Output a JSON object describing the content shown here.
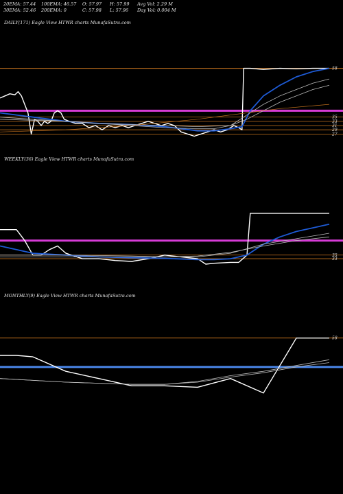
{
  "header": {
    "ema20": "20EMA: 57.44",
    "ema100": "100EMA: 46.57",
    "open": "O: 57.97",
    "high": "H: 57.99",
    "avg_vol": "Avg Vol: 2.29 M",
    "ema30": "30EMA: 52.46",
    "ema200": "200EMA: 0",
    "close": "C: 57.98",
    "low": "L: 57.96",
    "day_vol": "Day Vol: 0.004 M"
  },
  "colors": {
    "background": "#000000",
    "price": "#ffffff",
    "ema_fast": "#1e5bd6",
    "ema_slow": "#bbbbbb",
    "magenta_level": "#d63bd6",
    "orange_level": "#c8741e",
    "blue_level": "#4a86e8"
  },
  "chart_data": [
    {
      "type": "line",
      "title": "DAILY(171) Eagle   View  HTWR charts MunafaSutra.com",
      "ylim": [
        25.5,
        59.5
      ],
      "xlim": [
        0,
        100
      ],
      "ticks": [
        {
          "value": 58,
          "label": "58"
        },
        {
          "value": 35,
          "label": "35"
        },
        {
          "value": 33,
          "label": "33"
        },
        {
          "value": 31,
          "label": "31"
        },
        {
          "value": 29,
          "label": "29"
        },
        {
          "value": 27,
          "label": "27"
        }
      ],
      "hlines": [
        {
          "y": 58,
          "color": "orange",
          "width": 1
        },
        {
          "y": 38,
          "color": "magenta",
          "width": 3
        },
        {
          "y": 35,
          "color": "orange",
          "width": 0.8
        },
        {
          "y": 33,
          "color": "orange",
          "width": 0.8
        },
        {
          "y": 31,
          "color": "orange",
          "width": 0.8
        },
        {
          "y": 29,
          "color": "orange",
          "width": 0.8
        },
        {
          "y": 27,
          "color": "orange",
          "width": 0.8
        }
      ],
      "series": [
        {
          "role": "price",
          "points": [
            [
              0,
              44
            ],
            [
              1.5,
              45
            ],
            [
              3,
              46
            ],
            [
              4.5,
              45.5
            ],
            [
              5.5,
              47
            ],
            [
              6.5,
              45
            ],
            [
              7.5,
              41
            ],
            [
              8.5,
              37
            ],
            [
              9.5,
              27
            ],
            [
              10.5,
              34
            ],
            [
              11.5,
              33
            ],
            [
              12.5,
              31
            ],
            [
              13.5,
              33
            ],
            [
              14.5,
              32
            ],
            [
              15.5,
              33
            ],
            [
              16.5,
              37
            ],
            [
              17.5,
              38
            ],
            [
              18.5,
              37
            ],
            [
              19.5,
              34
            ],
            [
              21,
              33
            ],
            [
              23,
              32
            ],
            [
              25,
              32
            ],
            [
              27,
              30
            ],
            [
              29,
              31
            ],
            [
              31,
              29
            ],
            [
              33,
              31
            ],
            [
              35,
              30
            ],
            [
              37,
              31
            ],
            [
              39,
              30
            ],
            [
              41,
              31
            ],
            [
              43,
              32
            ],
            [
              45,
              33
            ],
            [
              47,
              32
            ],
            [
              49,
              31
            ],
            [
              51,
              32
            ],
            [
              53,
              31
            ],
            [
              55,
              28
            ],
            [
              57,
              27
            ],
            [
              59,
              26
            ],
            [
              61,
              27
            ],
            [
              63,
              28
            ],
            [
              65,
              29
            ],
            [
              67,
              28
            ],
            [
              69,
              29
            ],
            [
              71,
              31
            ],
            [
              72.5,
              30
            ],
            [
              73.5,
              29
            ],
            [
              74,
              58
            ],
            [
              76,
              58
            ],
            [
              80,
              57.5
            ],
            [
              85,
              58
            ],
            [
              90,
              57.8
            ],
            [
              95,
              58
            ],
            [
              100,
              58
            ]
          ]
        },
        {
          "role": "ema_fast",
          "points": [
            [
              0,
              37
            ],
            [
              5,
              36
            ],
            [
              10,
              35
            ],
            [
              20,
              33
            ],
            [
              30,
              32
            ],
            [
              40,
              31.5
            ],
            [
              50,
              30.5
            ],
            [
              55,
              29.5
            ],
            [
              60,
              28.5
            ],
            [
              65,
              28.5
            ],
            [
              70,
              29.5
            ],
            [
              73.5,
              30.5
            ],
            [
              76,
              38
            ],
            [
              80,
              45
            ],
            [
              85,
              50
            ],
            [
              90,
              54
            ],
            [
              95,
              56.5
            ],
            [
              100,
              58
            ]
          ]
        },
        {
          "role": "ema_slow",
          "points": [
            [
              0,
              35
            ],
            [
              10,
              34
            ],
            [
              20,
              33
            ],
            [
              30,
              32
            ],
            [
              40,
              31
            ],
            [
              50,
              30
            ],
            [
              60,
              29.5
            ],
            [
              65,
              29.5
            ],
            [
              70,
              31
            ],
            [
              75,
              36
            ],
            [
              80,
              41
            ],
            [
              85,
              45
            ],
            [
              90,
              48
            ],
            [
              95,
              51
            ],
            [
              100,
              53
            ]
          ]
        },
        {
          "role": "ema_slow",
          "points": [
            [
              0,
              34
            ],
            [
              10,
              33.5
            ],
            [
              20,
              33
            ],
            [
              30,
              32
            ],
            [
              40,
              31.5
            ],
            [
              50,
              31
            ],
            [
              60,
              30.5
            ],
            [
              70,
              31
            ],
            [
              75,
              34
            ],
            [
              80,
              38
            ],
            [
              85,
              42
            ],
            [
              90,
              45
            ],
            [
              95,
              48
            ],
            [
              100,
              50
            ]
          ]
        },
        {
          "role": "ema_orange",
          "points": [
            [
              0,
              28
            ],
            [
              20,
              29
            ],
            [
              40,
              31
            ],
            [
              60,
              34
            ],
            [
              75,
              37
            ],
            [
              85,
              39
            ],
            [
              100,
              41
            ]
          ]
        }
      ]
    },
    {
      "type": "line",
      "title": "WEEKLY(36) Eagle   View  HTWR charts MunafaSutra.com",
      "ylim": [
        30,
        64
      ],
      "xlim": [
        0,
        100
      ],
      "ticks": [
        {
          "value": 35,
          "label": "35"
        },
        {
          "value": 33,
          "label": "33"
        }
      ],
      "hlines": [
        {
          "y": 43,
          "color": "magenta",
          "width": 3
        },
        {
          "y": 35,
          "color": "orange",
          "width": 0.8
        },
        {
          "y": 33,
          "color": "orange",
          "width": 0.8
        }
      ],
      "series": [
        {
          "role": "price",
          "points": [
            [
              0,
              49
            ],
            [
              5,
              49
            ],
            [
              7.5,
              43
            ],
            [
              10,
              35
            ],
            [
              12.5,
              35
            ],
            [
              15,
              38
            ],
            [
              17.5,
              40
            ],
            [
              20,
              36
            ],
            [
              25,
              33
            ],
            [
              30,
              33
            ],
            [
              35,
              32
            ],
            [
              40,
              31.5
            ],
            [
              45,
              33
            ],
            [
              50,
              35
            ],
            [
              55,
              34
            ],
            [
              60,
              33
            ],
            [
              62.5,
              30
            ],
            [
              65,
              30.5
            ],
            [
              70,
              31
            ],
            [
              72.5,
              31
            ],
            [
              75,
              35
            ],
            [
              76,
              58
            ],
            [
              80,
              58
            ],
            [
              85,
              58
            ],
            [
              90,
              58
            ],
            [
              95,
              58
            ],
            [
              100,
              58
            ]
          ]
        },
        {
          "role": "ema_fast",
          "points": [
            [
              0,
              40
            ],
            [
              10,
              36
            ],
            [
              20,
              35
            ],
            [
              30,
              34
            ],
            [
              40,
              33.5
            ],
            [
              50,
              33.2
            ],
            [
              60,
              32.5
            ],
            [
              65,
              32.5
            ],
            [
              70,
              33
            ],
            [
              75,
              35
            ],
            [
              80,
              41
            ],
            [
              85,
              45
            ],
            [
              90,
              48
            ],
            [
              95,
              50
            ],
            [
              100,
              52
            ]
          ]
        },
        {
          "role": "ema_slow",
          "points": [
            [
              0,
              35
            ],
            [
              20,
              35
            ],
            [
              40,
              34.5
            ],
            [
              50,
              34
            ],
            [
              60,
              34
            ],
            [
              70,
              36
            ],
            [
              80,
              41
            ],
            [
              90,
              44
            ],
            [
              100,
              47
            ]
          ]
        },
        {
          "role": "ema_slow",
          "points": [
            [
              0,
              34
            ],
            [
              20,
              34
            ],
            [
              40,
              34
            ],
            [
              50,
              34
            ],
            [
              60,
              34.5
            ],
            [
              70,
              36.5
            ],
            [
              80,
              40
            ],
            [
              90,
              43
            ],
            [
              100,
              45
            ]
          ]
        }
      ]
    },
    {
      "type": "line",
      "title": "MONTHLY(9) Eagle   View  HTWR charts MunafaSutra.com",
      "ylim": [
        0,
        64
      ],
      "xlim": [
        0,
        100
      ],
      "ticks": [
        {
          "value": 58,
          "label": "58"
        }
      ],
      "hlines": [
        {
          "y": 58,
          "color": "orange",
          "width": 1
        },
        {
          "y": 38,
          "color": "blue",
          "width": 3
        }
      ],
      "series": [
        {
          "role": "price",
          "points": [
            [
              0,
              46
            ],
            [
              5,
              46
            ],
            [
              10,
              45
            ],
            [
              20,
              35
            ],
            [
              30,
              30
            ],
            [
              40,
              25
            ],
            [
              50,
              25
            ],
            [
              60,
              24
            ],
            [
              70,
              30
            ],
            [
              80,
              20
            ],
            [
              90,
              58
            ],
            [
              100,
              58
            ]
          ]
        },
        {
          "role": "ema_slow",
          "points": [
            [
              0,
              30
            ],
            [
              20,
              27.5
            ],
            [
              40,
              26
            ],
            [
              50,
              26
            ],
            [
              60,
              28
            ],
            [
              70,
              32
            ],
            [
              80,
              35
            ],
            [
              90,
              39
            ],
            [
              100,
              43
            ]
          ]
        },
        {
          "role": "ema_slow",
          "points": [
            [
              0,
              30
            ],
            [
              20,
              27.5
            ],
            [
              40,
              26
            ],
            [
              50,
              26
            ],
            [
              60,
              27.5
            ],
            [
              70,
              31
            ],
            [
              80,
              34
            ],
            [
              90,
              38
            ],
            [
              100,
              41
            ]
          ]
        }
      ]
    }
  ]
}
